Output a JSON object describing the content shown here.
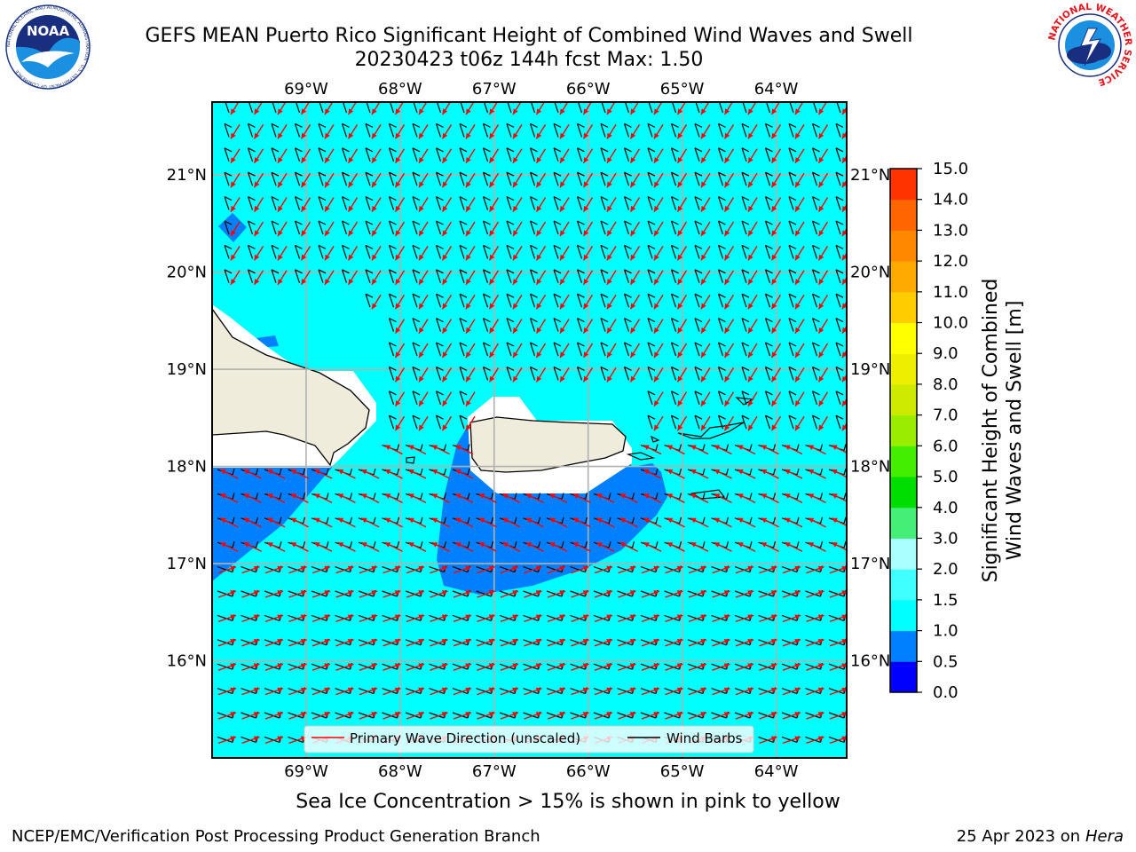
{
  "title": {
    "line1": "GEFS MEAN Puerto Rico Significant Height of Combined Wind Waves and Swell",
    "line2": "20230423 t06z 144h fcst   Max: 1.50"
  },
  "subtitle": "Sea Ice Concentration > 15% is shown in pink to yellow",
  "footer": {
    "left": "NCEP/EMC/Verification Post Processing Product Generation Branch",
    "right_date": "25 Apr 2023 on",
    "right_host": "Hera"
  },
  "logos": {
    "noaa": {
      "text": "NOAA",
      "ring": "NATIONAL OCEANIC AND ATMOSPHERIC ADMINISTRATION · U.S. DEPARTMENT OF COMMERCE"
    },
    "nws": {
      "ring": "NATIONAL WEATHER SERVICE"
    }
  },
  "map": {
    "lon_range": [
      -70.0,
      -63.25
    ],
    "lat_range": [
      15.0,
      21.75
    ],
    "lon_ticks": [
      -69,
      -68,
      -67,
      -66,
      -65,
      -64
    ],
    "lat_ticks": [
      16,
      17,
      18,
      19,
      20,
      21
    ],
    "lon_tick_labels": [
      "69°W",
      "68°W",
      "67°W",
      "66°W",
      "65°W",
      "64°W"
    ],
    "lat_tick_labels": [
      "16°N",
      "17°N",
      "18°N",
      "19°N",
      "20°N",
      "21°N"
    ],
    "ocean_color": "#00ffff",
    "low_wave_color": "#0080ff",
    "land_color": "#efecdc",
    "wave_arrow_color": "#ff0000",
    "wind_barb_color": "#000000",
    "legend": {
      "wave": "Primary Wave Direction (unscaled)",
      "barb": "Wind Barbs"
    }
  },
  "colorbar": {
    "label_line1": "Significant Height of Combined",
    "label_line2": "Wind Waves and Swell [m]",
    "levels": [
      "0.0",
      "0.5",
      "1.0",
      "1.5",
      "2.0",
      "3.0",
      "4.0",
      "5.0",
      "6.0",
      "7.0",
      "8.0",
      "9.0",
      "10.0",
      "11.0",
      "12.0",
      "13.0",
      "14.0",
      "15.0"
    ],
    "colors": [
      "#0000ff",
      "#0080ff",
      "#00ffff",
      "#40ffff",
      "#aaffff",
      "#44ee77",
      "#00dd00",
      "#44ee00",
      "#99ee00",
      "#cceb00",
      "#eeee00",
      "#ffff00",
      "#ffcc00",
      "#ffaa00",
      "#ff8800",
      "#ff6600",
      "#ff3300"
    ]
  }
}
